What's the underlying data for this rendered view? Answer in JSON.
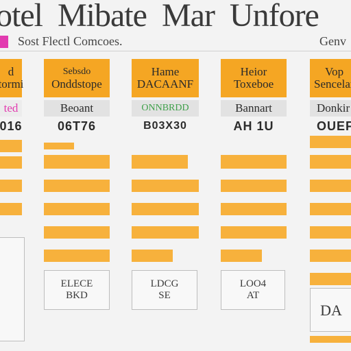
{
  "header": {
    "title_words": [
      "otel",
      "Mibate",
      "Mar",
      "Unfore"
    ],
    "subtitle": "Sost Flectl Comcoes.",
    "right_subtitle": "Genv",
    "accent_color": "#e23bb0"
  },
  "columns": [
    {
      "head_lines": [
        "d",
        "tormi"
      ],
      "sub": "ted",
      "num": "016"
    },
    {
      "head_lines": [
        "Sebsdo",
        "Onddstope"
      ],
      "sub": "Beoant",
      "num": "06T76"
    },
    {
      "head_lines": [
        "Hame",
        "DACAANF"
      ],
      "sub": "ONNBRDD",
      "num": "B03X30"
    },
    {
      "head_lines": [
        "Heior",
        "Toxeboe"
      ],
      "sub": "Bannart",
      "num": "AH 1U"
    },
    {
      "head_lines": [
        "Vop",
        "Sencelar"
      ],
      "sub": "Donkir",
      "num": "OUEFI"
    }
  ],
  "boxes": [
    {
      "lines": [
        "",
        ""
      ]
    },
    {
      "lines": [
        "ELECE",
        "BKD"
      ]
    },
    {
      "lines": [
        "LDCG",
        "SE"
      ]
    },
    {
      "lines": [
        "LOO4",
        "AT"
      ]
    },
    {
      "lines": [
        "DA",
        ""
      ]
    }
  ],
  "colors": {
    "orange": "#f5a623",
    "bar_orange": "#f7b13c",
    "sub_grey": "#e2e2e2",
    "green_text": "#3fa04a",
    "pink_text": "#e23bb0"
  }
}
